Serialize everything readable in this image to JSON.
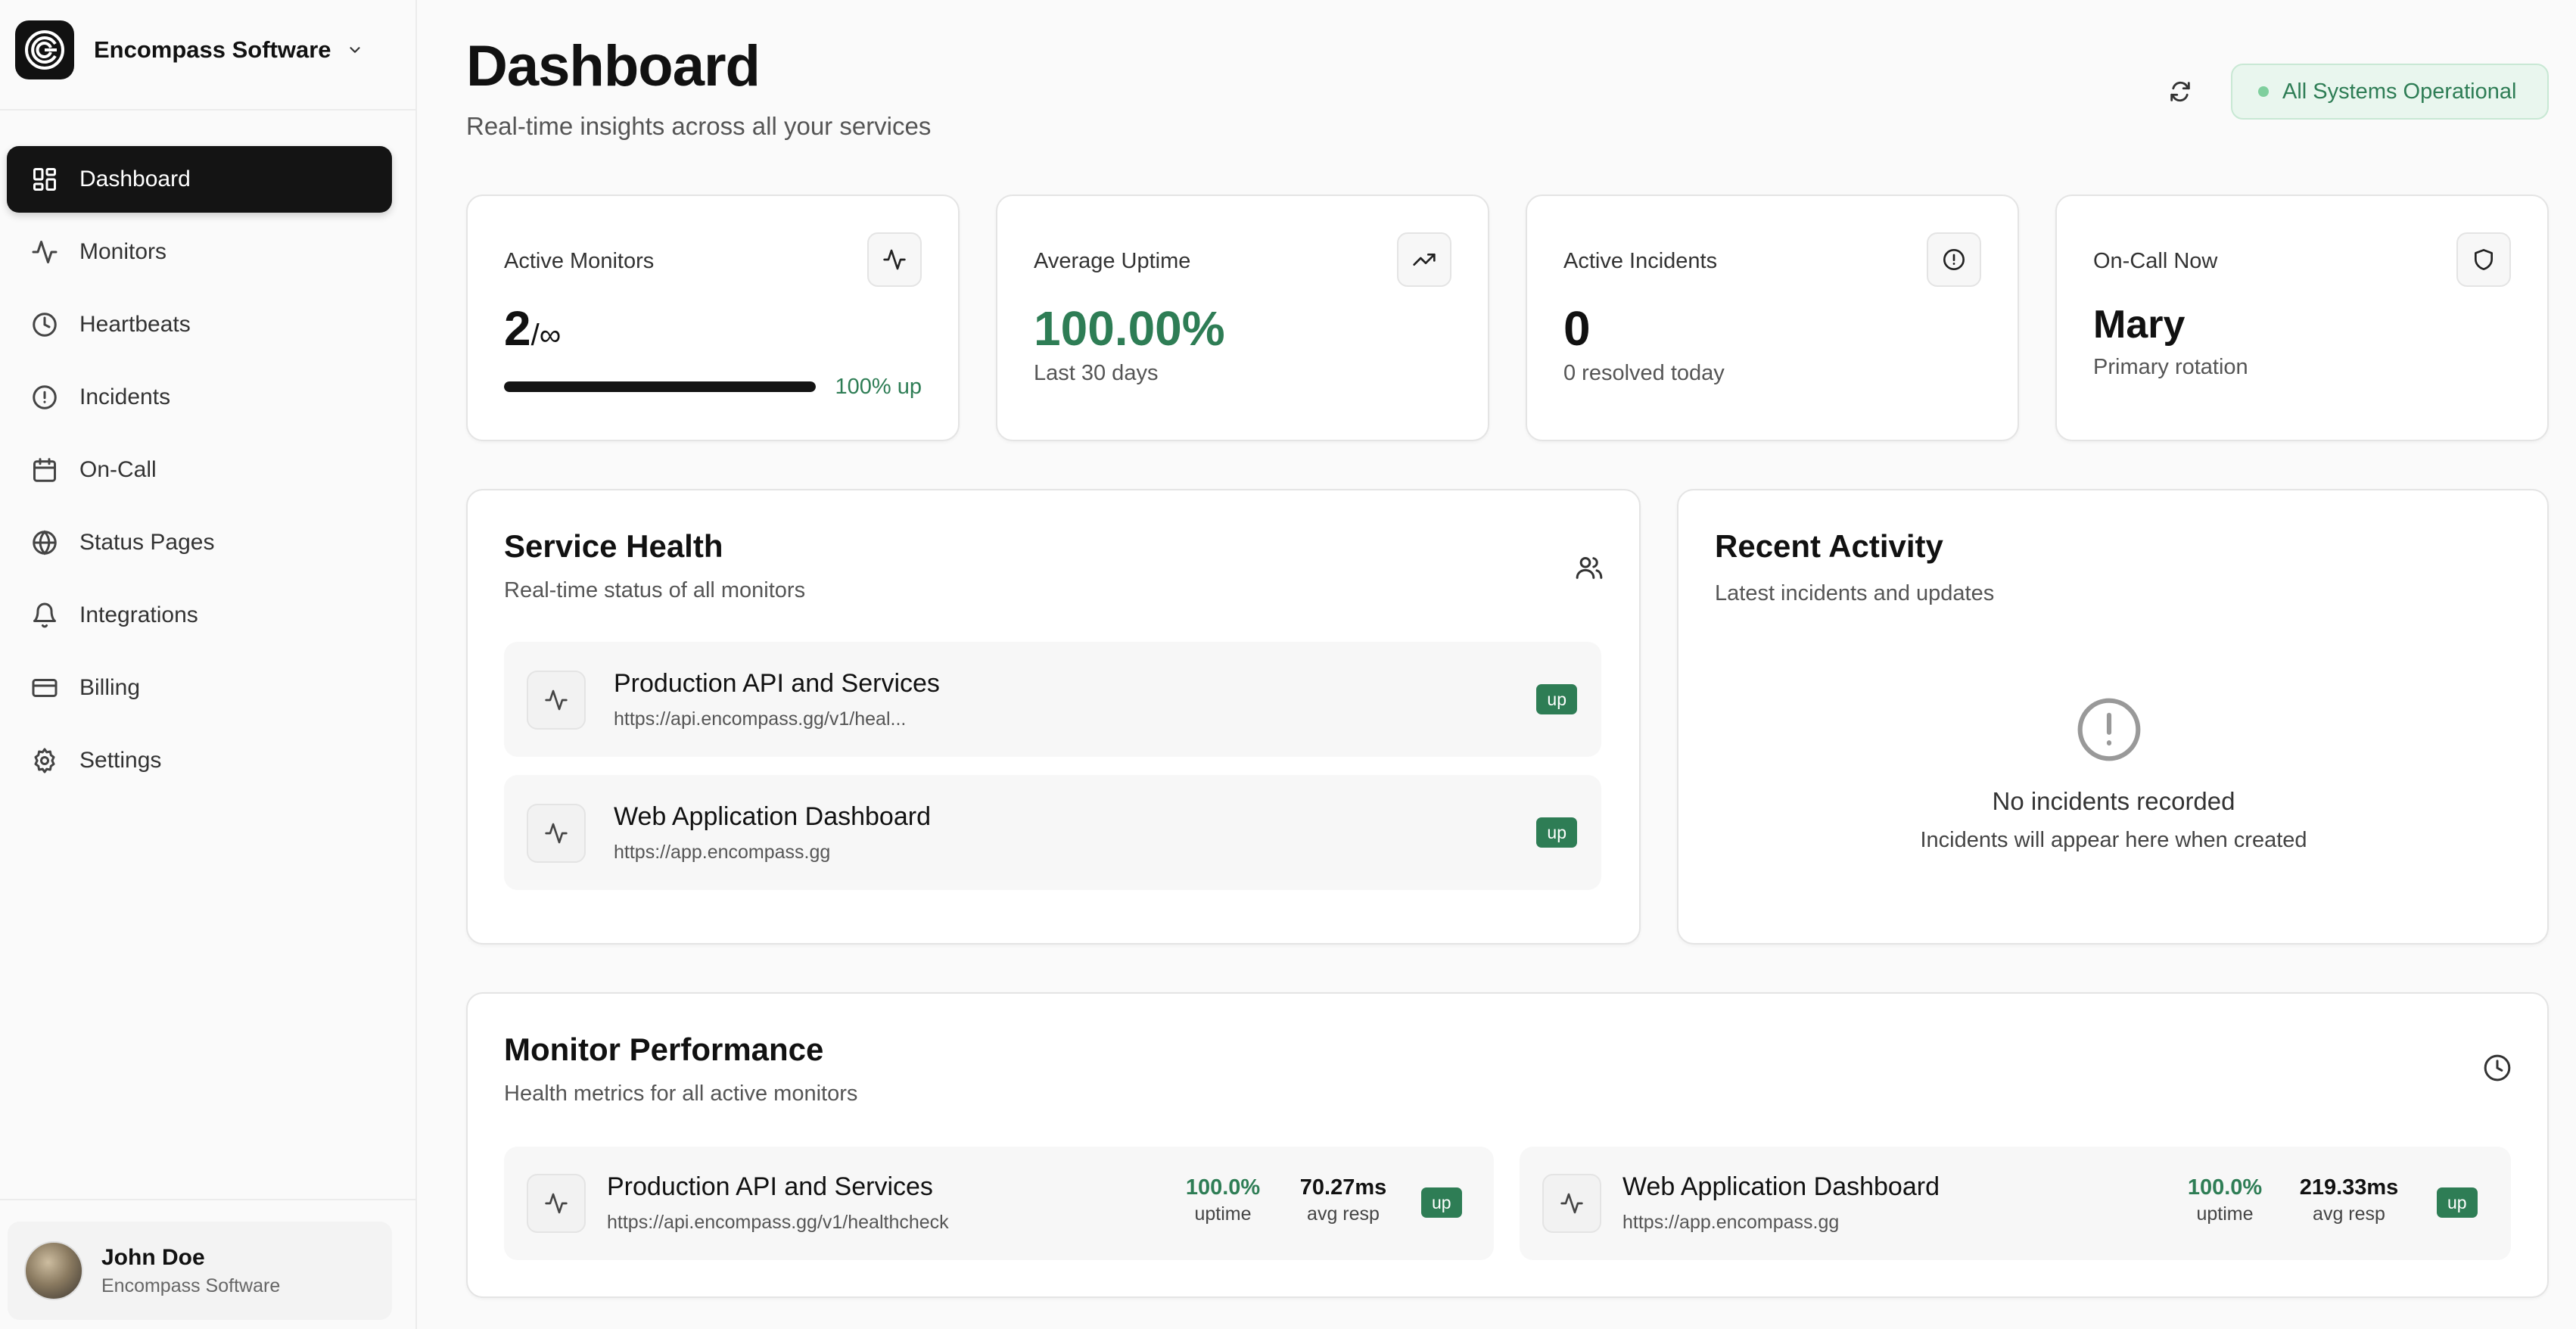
{
  "sidebar": {
    "org_name": "Encompass Software",
    "items": [
      {
        "label": "Dashboard",
        "icon": "dashboard-grid-icon",
        "active": true
      },
      {
        "label": "Monitors",
        "icon": "activity-icon"
      },
      {
        "label": "Heartbeats",
        "icon": "clock-icon"
      },
      {
        "label": "Incidents",
        "icon": "alert-circle-icon"
      },
      {
        "label": "On-Call",
        "icon": "calendar-icon"
      },
      {
        "label": "Status Pages",
        "icon": "globe-icon"
      },
      {
        "label": "Integrations",
        "icon": "bell-icon"
      },
      {
        "label": "Billing",
        "icon": "credit-card-icon"
      },
      {
        "label": "Settings",
        "icon": "gear-icon"
      }
    ],
    "user": {
      "name": "John Doe",
      "org": "Encompass Software"
    }
  },
  "header": {
    "title": "Dashboard",
    "subtitle": "Real-time insights across all your services",
    "status": "All Systems Operational"
  },
  "stats": {
    "active_monitors": {
      "label": "Active Monitors",
      "value": "2",
      "limit": "/∞",
      "progress": 1.0,
      "progress_label": "100% up"
    },
    "average_uptime": {
      "label": "Average Uptime",
      "value": "100.00%",
      "sub": "Last 30 days"
    },
    "active_incidents": {
      "label": "Active Incidents",
      "value": "0",
      "sub": "0 resolved today"
    },
    "on_call": {
      "label": "On-Call Now",
      "value": "Mary",
      "sub": "Primary rotation"
    }
  },
  "service_health": {
    "title": "Service Health",
    "subtitle": "Real-time status of all monitors",
    "services": [
      {
        "name": "Production API and Services",
        "url": "https://api.encompass.gg/v1/heal...",
        "status": "up"
      },
      {
        "name": "Web Application Dashboard",
        "url": "https://app.encompass.gg",
        "status": "up"
      }
    ]
  },
  "recent_activity": {
    "title": "Recent Activity",
    "subtitle": "Latest incidents and updates",
    "empty_title": "No incidents recorded",
    "empty_sub": "Incidents will appear here when created"
  },
  "monitor_performance": {
    "title": "Monitor Performance",
    "subtitle": "Health metrics for all active monitors",
    "uptime_label": "uptime",
    "resp_label": "avg resp",
    "monitors": [
      {
        "name": "Production API and Services",
        "url": "https://api.encompass.gg/v1/healthcheck",
        "uptime": "100.0%",
        "avg_resp": "70.27ms",
        "status": "up"
      },
      {
        "name": "Web Application Dashboard",
        "url": "https://app.encompass.gg",
        "uptime": "100.0%",
        "avg_resp": "219.33ms",
        "status": "up"
      }
    ]
  },
  "colors": {
    "accent_green": "#2e7d55",
    "active_nav": "#141414",
    "status_bg": "#e9f6ee"
  }
}
